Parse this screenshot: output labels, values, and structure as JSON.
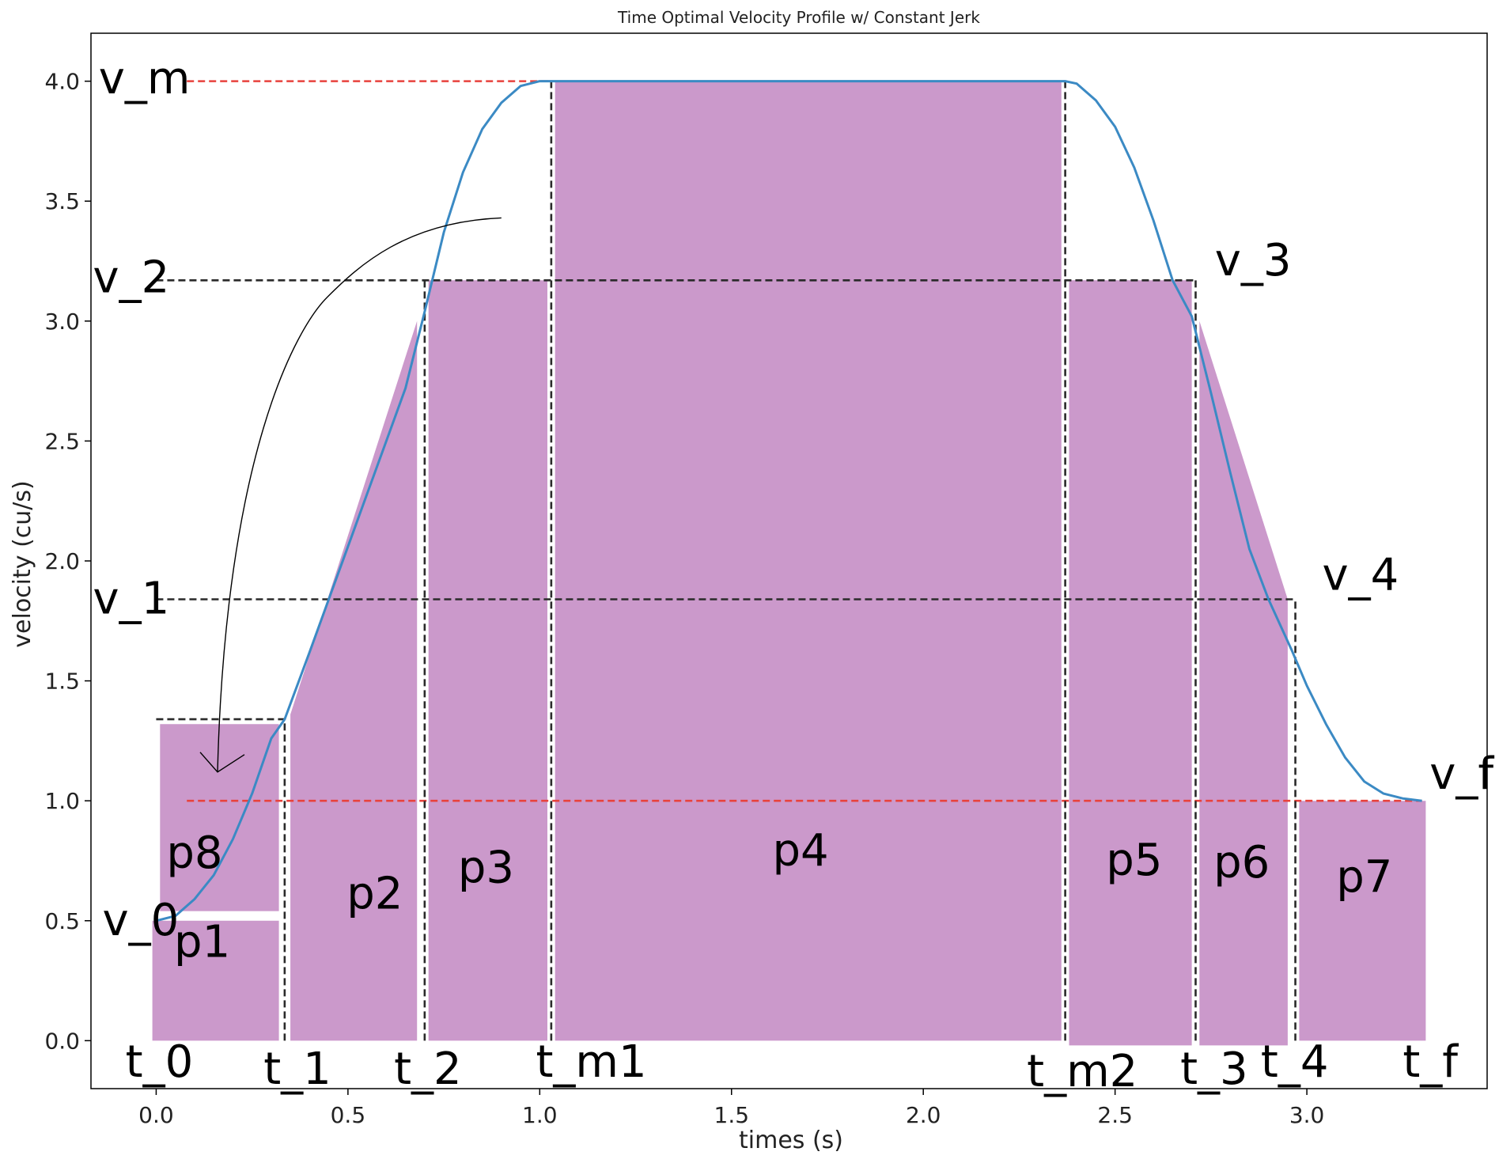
{
  "chart_data": {
    "type": "line",
    "title": "Time Optimal Velocity Profile w/ Constant Jerk",
    "xlabel": "times (s)",
    "ylabel": "velocity (cu/s)",
    "xlim": [
      -0.17,
      3.47
    ],
    "ylim": [
      -0.2,
      4.2
    ],
    "grid": false,
    "x_ticks": [
      0.0,
      0.5,
      1.0,
      1.5,
      2.0,
      2.5,
      3.0
    ],
    "x_tick_labels": [
      "0.0",
      "0.5",
      "1.0",
      "1.5",
      "2.0",
      "2.5",
      "3.0"
    ],
    "y_ticks": [
      0.0,
      0.5,
      1.0,
      1.5,
      2.0,
      2.5,
      3.0,
      3.5,
      4.0
    ],
    "y_tick_labels": [
      "0.0",
      "0.5",
      "1.0",
      "1.5",
      "2.0",
      "2.5",
      "3.0",
      "3.5",
      "4.0"
    ],
    "series": [
      {
        "name": "",
        "color": "#3b8ac4",
        "x": [
          0.0,
          0.05,
          0.1,
          0.15,
          0.2,
          0.25,
          0.3,
          0.335,
          0.4,
          0.45,
          0.5,
          0.55,
          0.6,
          0.65,
          0.7,
          0.75,
          0.8,
          0.85,
          0.9,
          0.95,
          1.0,
          1.03,
          1.5,
          2.0,
          2.37,
          2.4,
          2.45,
          2.5,
          2.55,
          2.6,
          2.65,
          2.7,
          2.75,
          2.8,
          2.85,
          2.9,
          2.96,
          3.0,
          3.05,
          3.1,
          3.15,
          3.2,
          3.25,
          3.3
        ],
        "y": [
          0.5,
          0.52,
          0.59,
          0.69,
          0.84,
          1.03,
          1.26,
          1.34,
          1.62,
          1.84,
          2.06,
          2.28,
          2.5,
          2.72,
          3.04,
          3.37,
          3.62,
          3.8,
          3.91,
          3.98,
          4.0,
          4.0,
          4.0,
          4.0,
          4.0,
          3.99,
          3.92,
          3.81,
          3.64,
          3.42,
          3.17,
          3.02,
          2.7,
          2.37,
          2.05,
          1.84,
          1.63,
          1.48,
          1.32,
          1.18,
          1.08,
          1.03,
          1.01,
          1.0
        ]
      }
    ],
    "dashed_lines": [
      {
        "name": "v_m-line",
        "color": "#e8423c",
        "x": [
          0.08,
          1.03
        ],
        "y": [
          4.0,
          4.0
        ]
      },
      {
        "name": "v_2-line",
        "color": "#2a2a2a",
        "x": [
          0.0,
          2.71
        ],
        "y": [
          3.17,
          3.17
        ]
      },
      {
        "name": "v_1-line",
        "color": "#2a2a2a",
        "x": [
          0.0,
          2.97
        ],
        "y": [
          1.84,
          1.84
        ]
      },
      {
        "name": "v_f-line",
        "color": "#e8423c",
        "x": [
          0.08,
          3.3
        ],
        "y": [
          1.0,
          1.0
        ]
      },
      {
        "name": "p8-top-line",
        "color": "#2a2a2a",
        "x": [
          0.0,
          0.335
        ],
        "y": [
          1.34,
          1.34
        ]
      },
      {
        "name": "t_1-line",
        "color": "#2a2a2a",
        "x": [
          0.335,
          0.335
        ],
        "y": [
          0.0,
          1.34
        ]
      },
      {
        "name": "t_2-line",
        "color": "#2a2a2a",
        "x": [
          0.7,
          0.7
        ],
        "y": [
          0.0,
          3.17
        ]
      },
      {
        "name": "t_m1-line",
        "color": "#2a2a2a",
        "x": [
          1.03,
          1.03
        ],
        "y": [
          0.0,
          4.0
        ]
      },
      {
        "name": "t_m2-line",
        "color": "#2a2a2a",
        "x": [
          2.37,
          2.37
        ],
        "y": [
          0.0,
          4.0
        ]
      },
      {
        "name": "t_3-line",
        "color": "#2a2a2a",
        "x": [
          2.71,
          2.71
        ],
        "y": [
          0.0,
          3.17
        ]
      },
      {
        "name": "t_4-line",
        "color": "#2a2a2a",
        "x": [
          2.97,
          2.97
        ],
        "y": [
          0.0,
          1.84
        ]
      }
    ],
    "regions": [
      {
        "label": "p1",
        "label_at": [
          0.12,
          0.35
        ],
        "poly": [
          [
            -0.01,
            0.0
          ],
          [
            0.32,
            0.0
          ],
          [
            0.32,
            0.5
          ],
          [
            -0.01,
            0.5
          ]
        ]
      },
      {
        "label": "p8",
        "label_at": [
          0.1,
          0.72
        ],
        "poly": [
          [
            0.01,
            0.54
          ],
          [
            0.32,
            0.54
          ],
          [
            0.32,
            1.32
          ],
          [
            0.01,
            1.32
          ]
        ]
      },
      {
        "label": "p2",
        "label_at": [
          0.57,
          0.55
        ],
        "poly": [
          [
            0.35,
            0.0
          ],
          [
            0.68,
            0.0
          ],
          [
            0.68,
            3.0
          ],
          [
            0.35,
            1.36
          ]
        ]
      },
      {
        "label": "p3",
        "label_at": [
          0.86,
          0.66
        ],
        "poly": [
          [
            0.71,
            0.0
          ],
          [
            1.02,
            0.0
          ],
          [
            1.02,
            3.17
          ],
          [
            0.71,
            3.17
          ]
        ]
      },
      {
        "label": "p4",
        "label_at": [
          1.68,
          0.73
        ],
        "poly": [
          [
            1.04,
            0.0
          ],
          [
            2.36,
            0.0
          ],
          [
            2.36,
            4.0
          ],
          [
            1.04,
            4.0
          ]
        ]
      },
      {
        "label": "p5",
        "label_at": [
          2.55,
          0.69
        ],
        "poly": [
          [
            2.38,
            -0.02
          ],
          [
            2.7,
            -0.02
          ],
          [
            2.7,
            3.17
          ],
          [
            2.38,
            3.17
          ]
        ]
      },
      {
        "label": "p6",
        "label_at": [
          2.83,
          0.68
        ],
        "poly": [
          [
            2.72,
            -0.02
          ],
          [
            2.95,
            -0.02
          ],
          [
            2.95,
            1.84
          ],
          [
            2.72,
            3.0
          ]
        ]
      },
      {
        "label": "p7",
        "label_at": [
          3.15,
          0.62
        ],
        "poly": [
          [
            2.98,
            0.0
          ],
          [
            3.31,
            0.0
          ],
          [
            3.31,
            1.0
          ],
          [
            2.98,
            1.0
          ]
        ]
      }
    ],
    "region_color": "#cb99cb",
    "annotations": [
      {
        "text": "v_m",
        "at": [
          -0.15,
          3.95
        ]
      },
      {
        "text": "v_2",
        "at": [
          -0.165,
          3.12
        ]
      },
      {
        "text": "v_1",
        "at": [
          -0.165,
          1.78
        ]
      },
      {
        "text": "v_0",
        "at": [
          -0.14,
          0.44
        ]
      },
      {
        "text": "v_3",
        "at": [
          2.76,
          3.19
        ]
      },
      {
        "text": "v_4",
        "at": [
          3.04,
          1.88
        ]
      },
      {
        "text": "v_f",
        "at": [
          3.32,
          1.05
        ]
      },
      {
        "text": "t_0",
        "at": [
          -0.08,
          -0.15
        ]
      },
      {
        "text": "t_1",
        "at": [
          0.28,
          -0.18
        ]
      },
      {
        "text": "t_2",
        "at": [
          0.62,
          -0.18
        ]
      },
      {
        "text": "t_m1",
        "at": [
          0.99,
          -0.15
        ]
      },
      {
        "text": "t_m2",
        "at": [
          2.27,
          -0.19
        ]
      },
      {
        "text": "t_3",
        "at": [
          2.67,
          -0.18
        ]
      },
      {
        "text": "t_4",
        "at": [
          2.88,
          -0.15
        ]
      },
      {
        "text": "t_f",
        "at": [
          3.25,
          -0.15
        ]
      }
    ],
    "arrow": {
      "from": [
        0.9,
        3.43
      ],
      "to": [
        0.16,
        1.12
      ]
    },
    "colors": {
      "curve": "#3b8ac4",
      "red_dash": "#e8423c",
      "black_dash": "#2a2a2a",
      "fill": "#cb99cb"
    }
  }
}
